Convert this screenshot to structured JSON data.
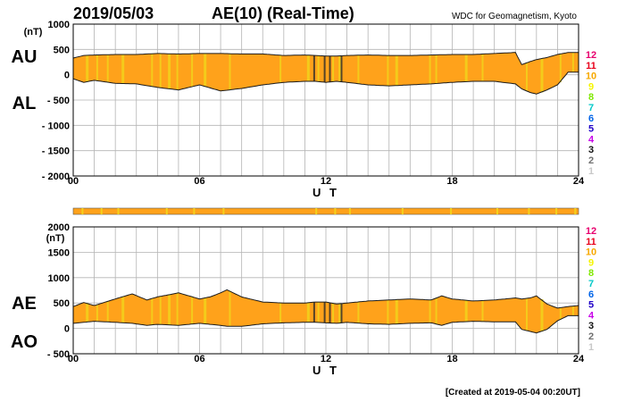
{
  "header": {
    "date": "2019/05/03",
    "title": "AE(10) (Real-Time)",
    "source": "WDC for Geomagnetism, Kyoto"
  },
  "footer": {
    "created": "[Created at 2019-05-04 00:20UT]"
  },
  "level_legend": {
    "labels": [
      "12",
      "11",
      "10",
      "9",
      "8",
      "7",
      "6",
      "5",
      "4",
      "3",
      "2",
      "1"
    ],
    "colors": [
      "#e8006e",
      "#e8001a",
      "#f7a800",
      "#f5f500",
      "#80e800",
      "#00c8c8",
      "#0064e8",
      "#2000c8",
      "#c800e8",
      "#101010",
      "#707070",
      "#c8c8c8"
    ]
  },
  "fill_colors": {
    "main": "#ffa21b",
    "light": "#f2d21b",
    "dark": "#2a2a2a"
  },
  "chart_data": [
    {
      "type": "area",
      "panel": "AU/AL",
      "series_labels": [
        "AU",
        "AL"
      ],
      "unit": "(nT)",
      "xlabel": "U T",
      "xlim": [
        0,
        24
      ],
      "ylim": [
        -2000,
        1000
      ],
      "x_ticks": [
        0,
        6,
        12,
        18,
        24
      ],
      "x_tick_labels": [
        "00",
        "06",
        "12",
        "18",
        "24"
      ],
      "y_ticks": [
        1000,
        500,
        0,
        -500,
        -1000,
        -1500,
        -2000
      ],
      "y_tick_labels": [
        "1000",
        "500",
        "0",
        "- 500",
        "- 1000",
        "- 1500",
        "- 2000"
      ],
      "grid": true,
      "series": [
        {
          "name": "AU",
          "x": [
            0,
            0.5,
            1,
            2,
            3,
            4,
            5,
            6,
            7,
            8,
            9,
            10,
            11,
            11.5,
            12,
            12.5,
            13,
            14,
            15,
            16,
            17,
            18,
            19,
            20,
            21,
            21.3,
            21.7,
            22,
            22.5,
            23,
            23.5,
            24
          ],
          "values": [
            330,
            380,
            390,
            400,
            400,
            420,
            410,
            420,
            420,
            410,
            410,
            380,
            390,
            380,
            370,
            370,
            380,
            390,
            380,
            380,
            390,
            400,
            400,
            420,
            440,
            200,
            260,
            300,
            340,
            400,
            440,
            440
          ]
        },
        {
          "name": "AL",
          "x": [
            0,
            0.5,
            1,
            2,
            3,
            4,
            5,
            6,
            7,
            8,
            9,
            10,
            11,
            11.5,
            12,
            12.5,
            13,
            14,
            15,
            16,
            17,
            18,
            19,
            20,
            21,
            21.3,
            21.7,
            22,
            22.5,
            23,
            23.5,
            24
          ],
          "values": [
            -80,
            -150,
            -110,
            -170,
            -180,
            -250,
            -300,
            -200,
            -320,
            -270,
            -200,
            -150,
            -130,
            -130,
            -150,
            -130,
            -150,
            -200,
            -220,
            -200,
            -180,
            -150,
            -130,
            -130,
            -180,
            -280,
            -350,
            -380,
            -300,
            -200,
            50,
            50
          ]
        }
      ]
    },
    {
      "type": "area",
      "panel": "AE/AO",
      "series_labels": [
        "AE",
        "AO"
      ],
      "unit": "(nT)",
      "xlabel": "U T",
      "xlim": [
        0,
        24
      ],
      "ylim": [
        -500,
        2000
      ],
      "x_ticks": [
        0,
        6,
        12,
        18,
        24
      ],
      "x_tick_labels": [
        "00",
        "06",
        "12",
        "18",
        "24"
      ],
      "y_ticks": [
        2000,
        1500,
        1000,
        500,
        0,
        -500
      ],
      "y_tick_labels": [
        "2000",
        "1500",
        "1000",
        "500",
        "0",
        "- 500"
      ],
      "grid": true,
      "series": [
        {
          "name": "AE",
          "x": [
            0,
            0.5,
            1,
            2,
            2.8,
            3.5,
            4,
            5,
            6,
            6.5,
            7,
            7.3,
            8,
            9,
            10,
            11,
            11.5,
            12,
            12.5,
            13,
            14,
            15,
            16,
            17,
            17.5,
            18,
            19,
            20,
            21,
            21.3,
            21.7,
            22,
            22.5,
            23,
            23.5,
            24
          ],
          "values": [
            430,
            510,
            450,
            580,
            680,
            560,
            620,
            700,
            580,
            620,
            700,
            760,
            620,
            520,
            500,
            500,
            520,
            520,
            480,
            500,
            540,
            560,
            580,
            560,
            640,
            580,
            540,
            560,
            600,
            580,
            600,
            640,
            480,
            400,
            430,
            450
          ]
        },
        {
          "name": "AO",
          "x": [
            0,
            0.5,
            1,
            2,
            2.8,
            3.5,
            4,
            5,
            6,
            6.5,
            7,
            7.3,
            8,
            9,
            10,
            11,
            11.5,
            12,
            12.5,
            13,
            14,
            15,
            16,
            17,
            17.5,
            18,
            19,
            20,
            21,
            21.3,
            21.7,
            22,
            22.5,
            23,
            23.5,
            24
          ],
          "values": [
            100,
            120,
            140,
            120,
            100,
            60,
            80,
            60,
            100,
            80,
            60,
            40,
            40,
            90,
            110,
            120,
            120,
            110,
            100,
            120,
            90,
            80,
            100,
            110,
            60,
            120,
            140,
            130,
            130,
            -20,
            -60,
            -90,
            -20,
            150,
            250,
            250
          ]
        }
      ]
    }
  ]
}
